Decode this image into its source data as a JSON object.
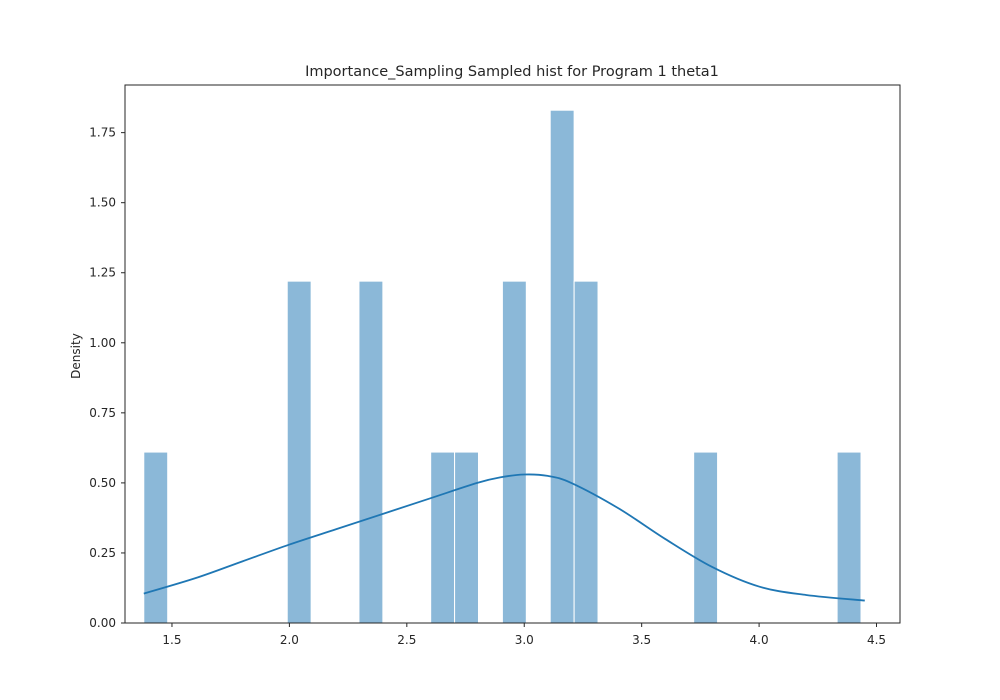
{
  "chart_data": {
    "type": "bar",
    "title": "Importance_Sampling Sampled hist for Program 1 theta1",
    "xlabel": "",
    "ylabel": "Density",
    "xlim": [
      1.3,
      4.6
    ],
    "ylim": [
      0,
      1.92
    ],
    "xticks": [
      1.5,
      2.0,
      2.5,
      3.0,
      3.5,
      4.0,
      4.5
    ],
    "xtick_labels": [
      "1.5",
      "2.0",
      "2.5",
      "3.0",
      "3.5",
      "4.0",
      "4.5"
    ],
    "yticks": [
      0,
      0.25,
      0.5,
      0.75,
      1.0,
      1.25,
      1.5,
      1.75
    ],
    "ytick_labels": [
      "0.00",
      "0.25",
      "0.50",
      "0.75",
      "1.00",
      "1.25",
      "1.50",
      "1.75"
    ],
    "grid": false,
    "bin_start": 1.38,
    "bin_width": 0.1018,
    "bins": [
      {
        "index": 0,
        "value": 0.61
      },
      {
        "index": 6,
        "value": 1.22
      },
      {
        "index": 9,
        "value": 1.22
      },
      {
        "index": 12,
        "value": 0.61
      },
      {
        "index": 13,
        "value": 0.61
      },
      {
        "index": 15,
        "value": 1.22
      },
      {
        "index": 17,
        "value": 1.83
      },
      {
        "index": 18,
        "value": 1.22
      },
      {
        "index": 23,
        "value": 0.61
      },
      {
        "index": 29,
        "value": 0.61
      }
    ],
    "kde": {
      "x": [
        1.38,
        1.6,
        1.8,
        2.0,
        2.2,
        2.4,
        2.6,
        2.8,
        2.9,
        3.0,
        3.1,
        3.2,
        3.4,
        3.6,
        3.8,
        4.0,
        4.2,
        4.45
      ],
      "y": [
        0.105,
        0.16,
        0.22,
        0.28,
        0.335,
        0.39,
        0.445,
        0.5,
        0.52,
        0.53,
        0.525,
        0.5,
        0.41,
        0.3,
        0.2,
        0.13,
        0.1,
        0.08
      ]
    },
    "colors": {
      "bar_fill": "#8bb8d8",
      "bar_edge": "#ffffff",
      "kde_line": "#1f77b4",
      "axes_edge": "#262626"
    }
  }
}
